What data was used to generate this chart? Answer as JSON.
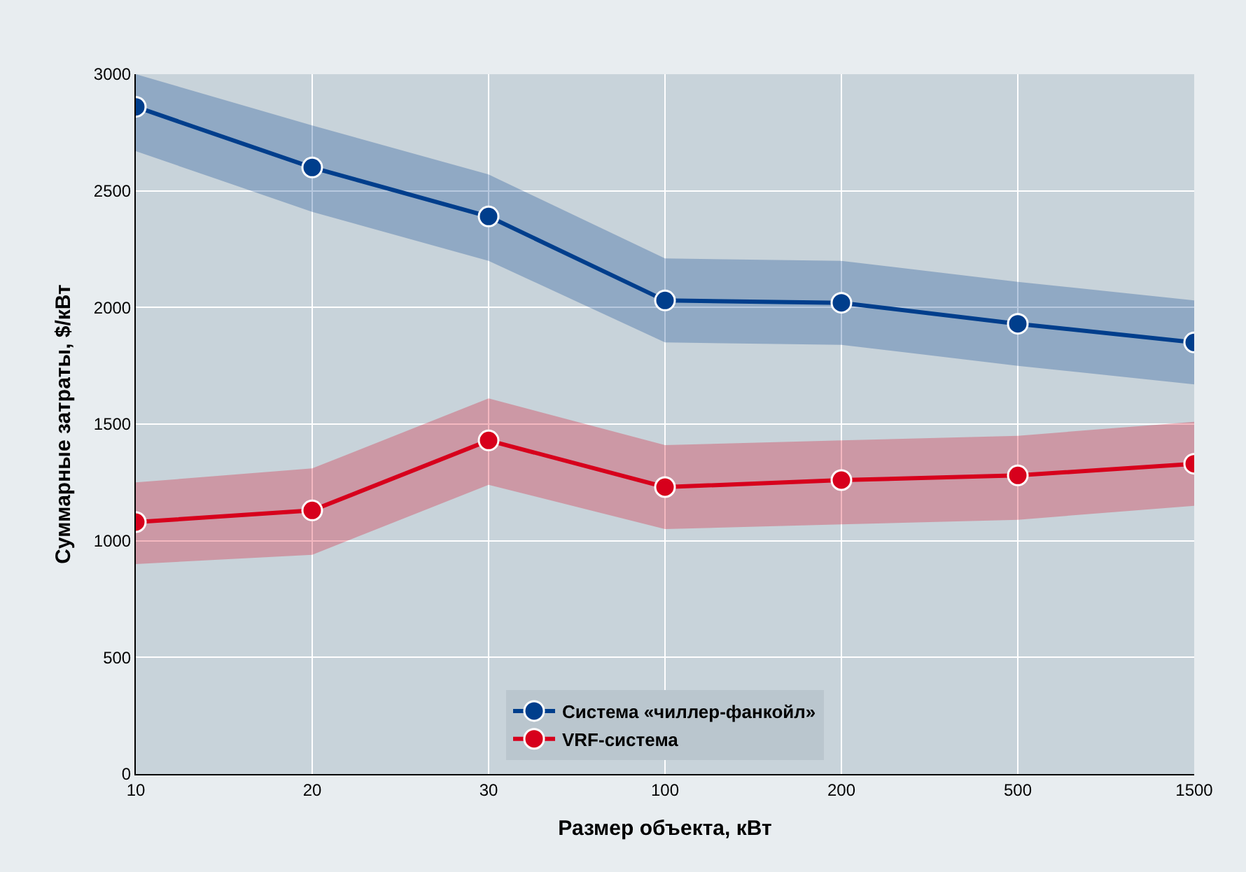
{
  "chart_data": {
    "type": "line",
    "xlabel": "Размер объекта, кВт",
    "ylabel": "Суммарные затраты, $/кВт",
    "categories": [
      "10",
      "20",
      "30",
      "100",
      "200",
      "500",
      "1500"
    ],
    "series": [
      {
        "name": "VRF-система",
        "color": "#d7001c",
        "values": [
          1080,
          1130,
          1430,
          1230,
          1260,
          1280,
          1330
        ],
        "lower": [
          900,
          940,
          1240,
          1050,
          1070,
          1090,
          1150
        ],
        "upper": [
          1250,
          1310,
          1610,
          1410,
          1430,
          1450,
          1510
        ]
      },
      {
        "name": "Система «чиллер-фанкойл»",
        "color": "#003e8c",
        "values": [
          2860,
          2600,
          2390,
          2030,
          2020,
          1930,
          1850
        ],
        "lower": [
          2670,
          2410,
          2200,
          1850,
          1840,
          1750,
          1670
        ],
        "upper": [
          3000,
          2780,
          2570,
          2210,
          2200,
          2110,
          2030
        ]
      }
    ],
    "ylim": [
      0,
      3000
    ],
    "yticks": [
      0,
      500,
      1000,
      1500,
      2000,
      2500,
      3000
    ],
    "grid": true,
    "legend": "bottom",
    "marker": "circle",
    "line_style": "solid"
  }
}
